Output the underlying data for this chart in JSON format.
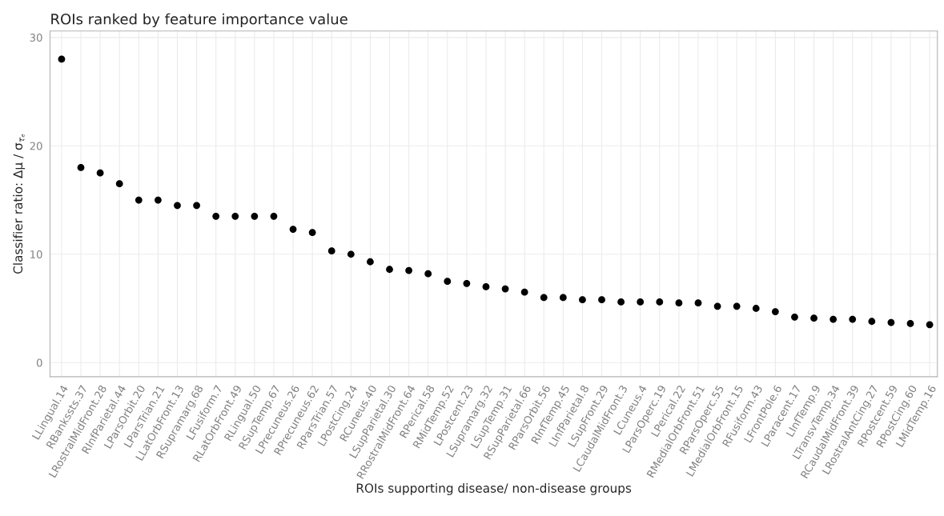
{
  "chart_data": {
    "type": "scatter",
    "title": "ROIs ranked by feature importance value",
    "xlabel": "ROIs supporting disease/ non-disease groups",
    "ylabel": "Classifier ratio: Δμ / σ$_{τₑ}$",
    "categories": [
      "LLingual.14",
      "RBankssts.37",
      "LRostralMidFront.28",
      "RInfParietal.44",
      "LParsOrbit.20",
      "LParsTrian.21",
      "LLatOrbFront.13",
      "RSupramarg.68",
      "LFusiform.7",
      "RLatOrbFront.49",
      "RLingual.50",
      "RSupTemp.67",
      "LPrecuneus.26",
      "RPrecuneus.62",
      "RParsTrian.57",
      "LPostCing.24",
      "RCuneus.40",
      "LSupParietal.30",
      "RRostralMidFront.64",
      "RPerical.58",
      "RMidTemp.52",
      "LPostcent.23",
      "LSupramarg.32",
      "LSupTemp.31",
      "RSupParietal.66",
      "RParsOrbit.56",
      "RInfTemp.45",
      "LInfParietal.8",
      "LSupFront.29",
      "LCaudalMidFront.3",
      "LCuneus.4",
      "LParsOperc.19",
      "LPerical.22",
      "RMedialOrbFront.51",
      "RParsOperc.55",
      "LMedialOrbFront.15",
      "RFusiform.43",
      "LFrontPole.6",
      "LParacent.17",
      "LInfTemp.9",
      "LTransvTemp.34",
      "RCaudalMidFront.39",
      "LRostralAntCing.27",
      "RPostcent.59",
      "RPostCing.60",
      "LMidTemp.16"
    ],
    "series": [
      {
        "color": "#000000",
        "values": [
          28,
          18,
          17.5,
          16.5,
          15,
          15,
          14.5,
          14.5,
          13.5,
          13.5,
          13.5,
          13.5,
          12.3,
          12,
          10.3,
          10,
          9.3,
          8.6,
          8.5,
          8.2,
          7.5,
          7.3,
          7.0,
          6.8,
          6.5,
          6.0,
          6.0,
          5.8,
          5.8,
          5.6,
          5.6,
          5.6,
          5.5,
          5.5,
          5.2,
          5.2,
          5.0,
          4.7,
          4.2,
          4.1,
          4.0,
          4.0,
          3.8,
          3.7,
          3.6,
          3.5
        ]
      }
    ],
    "ylim": [
      -1.3,
      30.6
    ],
    "yticks": [
      0,
      10,
      20,
      30
    ],
    "grid": true,
    "marker": "circle"
  }
}
